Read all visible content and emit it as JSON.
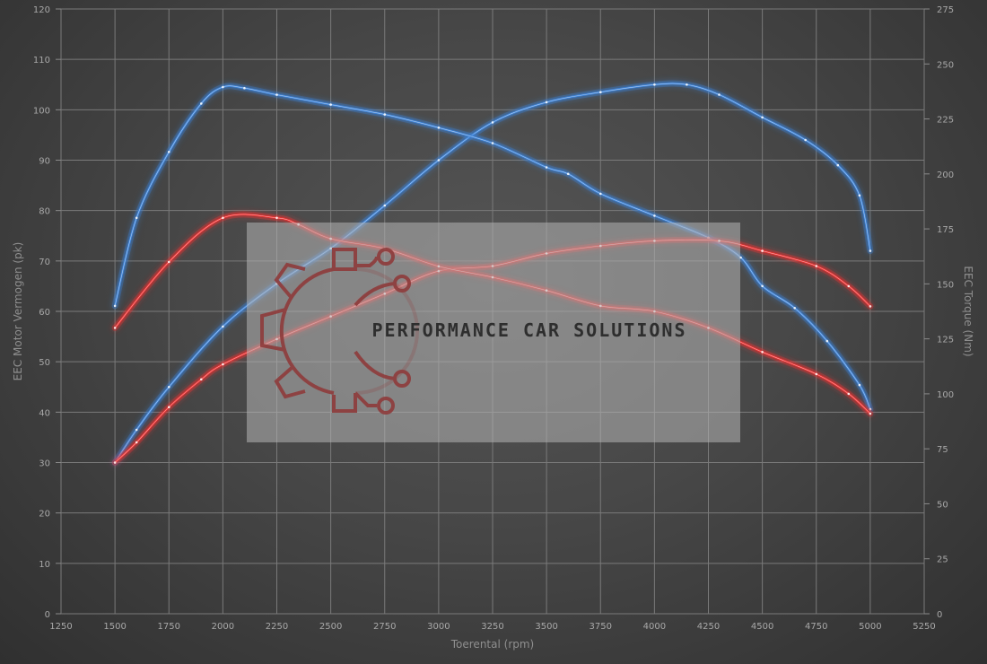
{
  "chart_data": {
    "type": "line",
    "xlabel": "Toerental (rpm)",
    "ylabel_left": "EEC Motor Vermogen (pk)",
    "ylabel_right": "EEC Torque (Nm)",
    "xlim": [
      1250,
      5250
    ],
    "ylim_left": [
      0,
      120
    ],
    "ylim_right": [
      0,
      275
    ],
    "x_ticks": [
      1250,
      1500,
      1750,
      2000,
      2250,
      2500,
      2750,
      3000,
      3250,
      3500,
      3750,
      4000,
      4250,
      4500,
      4750,
      5000,
      5250
    ],
    "y_left_ticks": [
      0,
      10,
      20,
      30,
      40,
      50,
      60,
      70,
      80,
      90,
      100,
      110,
      120
    ],
    "y_right_ticks": [
      0,
      25,
      50,
      75,
      100,
      125,
      150,
      175,
      200,
      225,
      250,
      275
    ],
    "grid": true,
    "series": [
      {
        "color": "#3d82d6",
        "axis": "left",
        "points": [
          [
            1500,
            30
          ],
          [
            1600,
            36.5
          ],
          [
            1750,
            45
          ],
          [
            2000,
            57
          ],
          [
            2250,
            65.5
          ],
          [
            2500,
            72.5
          ],
          [
            2750,
            81
          ],
          [
            3000,
            90
          ],
          [
            3250,
            97.5
          ],
          [
            3500,
            101.5
          ],
          [
            3750,
            103.5
          ],
          [
            4000,
            105
          ],
          [
            4150,
            105
          ],
          [
            4300,
            103
          ],
          [
            4500,
            98.5
          ],
          [
            4700,
            94
          ],
          [
            4850,
            89
          ],
          [
            4950,
            83
          ],
          [
            5000,
            72
          ]
        ]
      },
      {
        "color": "#3d82d6",
        "axis": "right",
        "points": [
          [
            1500,
            140
          ],
          [
            1600,
            180
          ],
          [
            1750,
            210
          ],
          [
            1900,
            232
          ],
          [
            2000,
            239.5
          ],
          [
            2100,
            239
          ],
          [
            2250,
            236
          ],
          [
            2500,
            231.5
          ],
          [
            2750,
            227
          ],
          [
            3000,
            221
          ],
          [
            3250,
            214
          ],
          [
            3500,
            203
          ],
          [
            3600,
            200
          ],
          [
            3750,
            191
          ],
          [
            4000,
            181
          ],
          [
            4250,
            171
          ],
          [
            4400,
            162
          ],
          [
            4500,
            149
          ],
          [
            4650,
            139
          ],
          [
            4800,
            124
          ],
          [
            4950,
            104
          ],
          [
            5000,
            93
          ]
        ]
      },
      {
        "color": "#e83030",
        "axis": "left",
        "points": [
          [
            1500,
            30
          ],
          [
            1600,
            34
          ],
          [
            1750,
            41
          ],
          [
            1900,
            46.5
          ],
          [
            2000,
            49.5
          ],
          [
            2250,
            54.5
          ],
          [
            2500,
            59
          ],
          [
            2750,
            63.5
          ],
          [
            3000,
            68
          ],
          [
            3250,
            69
          ],
          [
            3500,
            71.5
          ],
          [
            3750,
            73
          ],
          [
            4000,
            74
          ],
          [
            4300,
            74
          ],
          [
            4500,
            72
          ],
          [
            4750,
            69
          ],
          [
            4900,
            65
          ],
          [
            5000,
            61
          ]
        ]
      },
      {
        "color": "#e83030",
        "axis": "right",
        "points": [
          [
            1500,
            130
          ],
          [
            1750,
            160
          ],
          [
            2000,
            180
          ],
          [
            2250,
            180
          ],
          [
            2350,
            177
          ],
          [
            2500,
            170.5
          ],
          [
            2750,
            166
          ],
          [
            3000,
            158
          ],
          [
            3250,
            153
          ],
          [
            3500,
            147
          ],
          [
            3750,
            140
          ],
          [
            4000,
            137.5
          ],
          [
            4250,
            130
          ],
          [
            4500,
            119
          ],
          [
            4750,
            109
          ],
          [
            4900,
            100
          ],
          [
            5000,
            91
          ]
        ]
      }
    ],
    "watermark_text": "PERFORMANCE CAR SOLUTIONS"
  }
}
